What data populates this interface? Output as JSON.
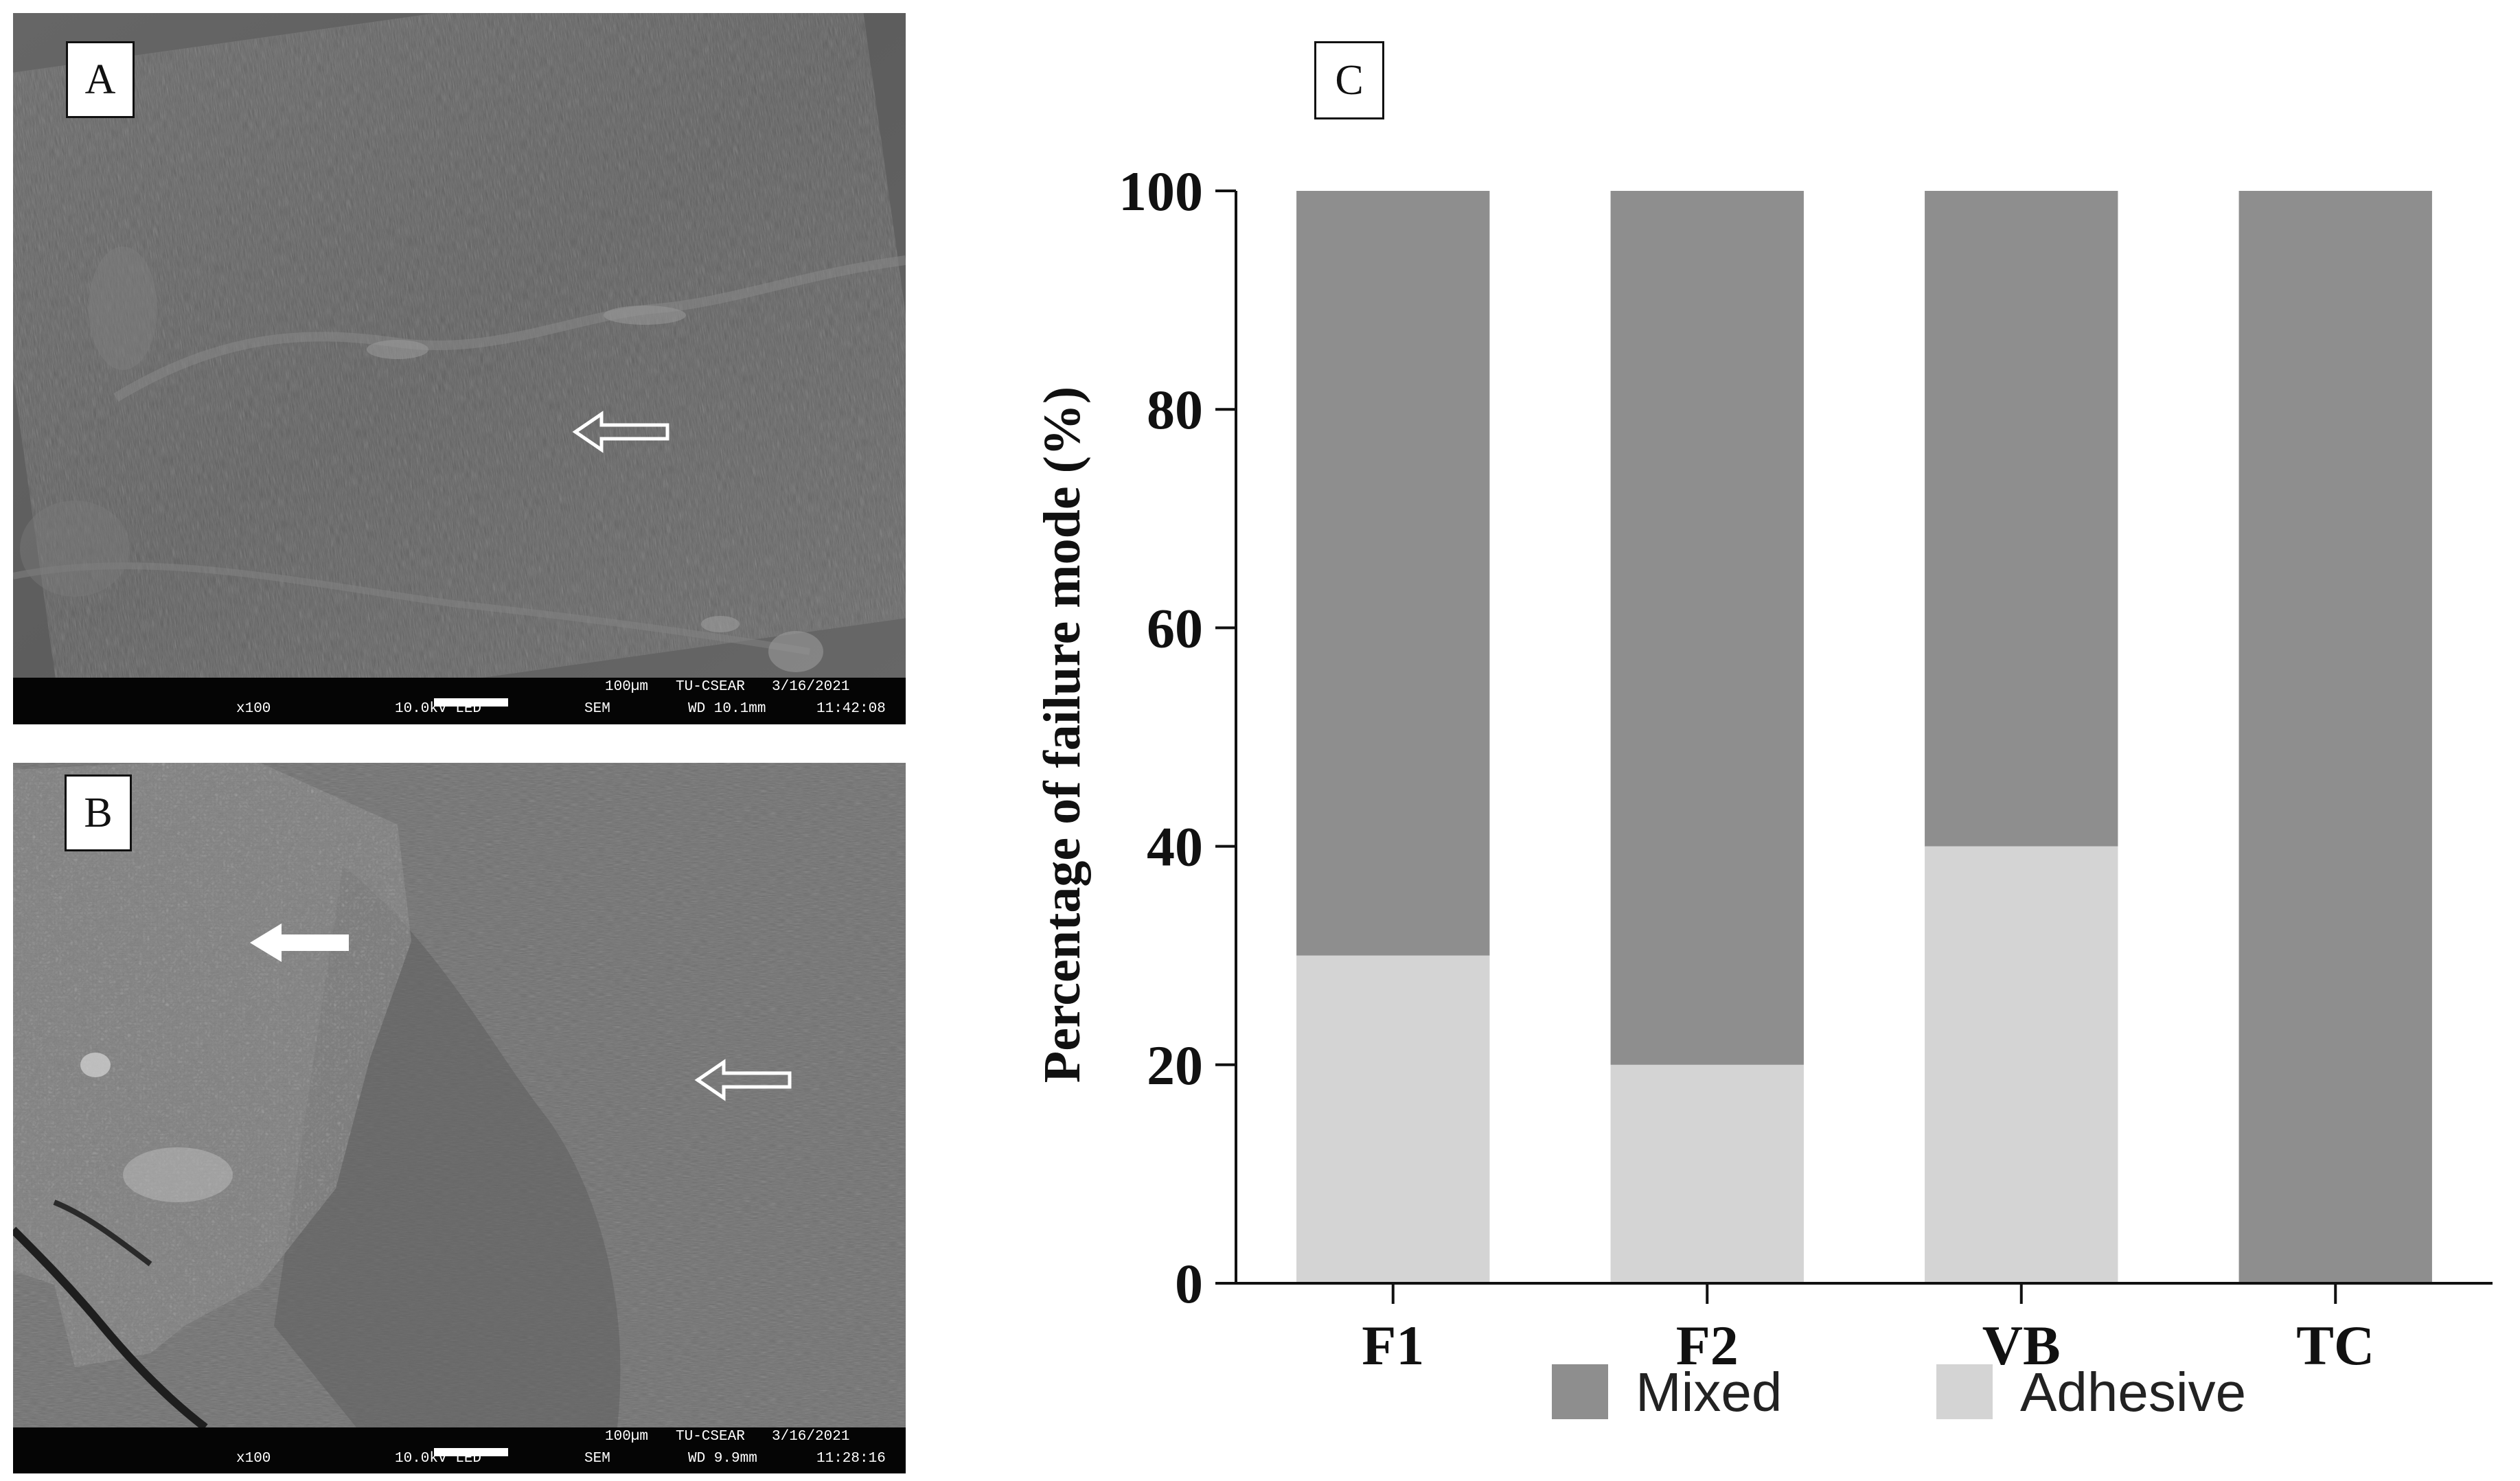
{
  "panels": {
    "a": {
      "letter": "A",
      "sem_info": {
        "scale": "100µm",
        "lab": "TU-CSEAR",
        "date": "3/16/2021",
        "mag": "x100",
        "kv": "10.0kV LED",
        "mode": "SEM",
        "wd": "WD 10.1mm",
        "time": "11:42:08"
      }
    },
    "b": {
      "letter": "B",
      "sem_info": {
        "scale": "100µm",
        "lab": "TU-CSEAR",
        "date": "3/16/2021",
        "mag": "x100",
        "kv": "10.0kV LED",
        "mode": "SEM",
        "wd": "WD 9.9mm",
        "time": "11:28:16"
      }
    },
    "c": {
      "letter": "C"
    }
  },
  "chart_data": {
    "type": "bar",
    "stacked": true,
    "categories": [
      "F1",
      "F2",
      "VB",
      "TC"
    ],
    "series": [
      {
        "name": "Adhesive",
        "values": [
          30,
          20,
          40,
          0
        ],
        "color": "#d4d4d4"
      },
      {
        "name": "Mixed",
        "values": [
          70,
          80,
          60,
          100
        ],
        "color": "#8e8e8e"
      }
    ],
    "ylabel": "Percentage of failure mode (%)",
    "xlabel": "",
    "ylim": [
      0,
      100
    ],
    "yticks": [
      0,
      20,
      40,
      60,
      80,
      100
    ],
    "legend_order": [
      "Mixed",
      "Adhesive"
    ],
    "legend_position": "bottom",
    "grid": false
  }
}
